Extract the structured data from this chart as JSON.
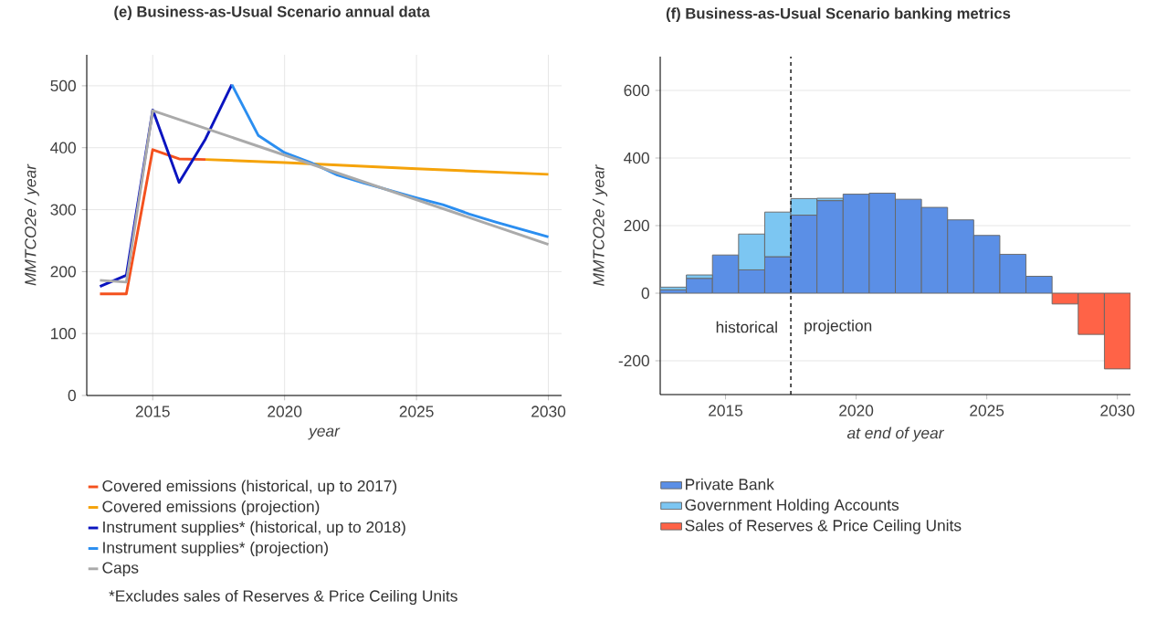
{
  "chart_data": [
    {
      "type": "line",
      "title": "(e) Business-as-Usual Scenario annual data",
      "xlabel": "year",
      "ylabel": "MMTCO2e / year",
      "xlim": [
        2012.5,
        2030.5
      ],
      "ylim": [
        0,
        550
      ],
      "xticks": [
        2015,
        2020,
        2025,
        2030
      ],
      "yticks": [
        0,
        100,
        200,
        300,
        400,
        500
      ],
      "grid": true,
      "legend": "bottom",
      "series": [
        {
          "name": "Covered emissions (historical, up to 2017)",
          "color": "#f4511e",
          "x": [
            2013,
            2014,
            2015,
            2016,
            2017
          ],
          "values": [
            164,
            164,
            397,
            382,
            381
          ]
        },
        {
          "name": "Covered emissions (projection)",
          "color": "#f5a30a",
          "x": [
            2017,
            2020,
            2025,
            2030
          ],
          "values": [
            381,
            376,
            366,
            357
          ]
        },
        {
          "name": "Instrument supplies* (historical, up to 2018)",
          "color": "#0a14c0",
          "x": [
            2013,
            2014,
            2015,
            2016,
            2017,
            2018
          ],
          "values": [
            176,
            194,
            461,
            344,
            414,
            502
          ]
        },
        {
          "name": "Instrument supplies* (projection)",
          "color": "#2b8ef0",
          "x": [
            2018,
            2019,
            2020,
            2021,
            2022,
            2023,
            2024,
            2025,
            2026,
            2027,
            2028,
            2029,
            2030
          ],
          "values": [
            502,
            420,
            392,
            376,
            356,
            343,
            331,
            319,
            308,
            293,
            280,
            268,
            256
          ]
        },
        {
          "name": "Caps",
          "color": "#aaaaaa",
          "x": [
            2013,
            2014,
            2015,
            2030
          ],
          "values": [
            186,
            183,
            460,
            244
          ]
        }
      ],
      "annotations": [
        "*Excludes sales of Reserves & Price Ceiling Units"
      ]
    },
    {
      "type": "bar",
      "stacked": true,
      "title": "(f) Business-as-Usual Scenario banking metrics",
      "xlabel": "at end of year",
      "ylabel": "MMTCO2e / year",
      "xlim": [
        2012.5,
        2030.5
      ],
      "ylim": [
        -300,
        700
      ],
      "xticks": [
        2015,
        2020,
        2025,
        2030
      ],
      "yticks": [
        -200,
        0,
        200,
        400,
        600
      ],
      "grid": "y",
      "legend": "bottom",
      "x": [
        2013,
        2014,
        2015,
        2016,
        2017,
        2018,
        2019,
        2020,
        2021,
        2022,
        2023,
        2024,
        2025,
        2026,
        2027,
        2028,
        2029,
        2030
      ],
      "series": [
        {
          "name": "Private Bank",
          "color": "#5b8fe6",
          "values": [
            10,
            44,
            113,
            69,
            108,
            231,
            274,
            293,
            296,
            278,
            254,
            217,
            171,
            115,
            50,
            null,
            null,
            null
          ]
        },
        {
          "name": "Government Holding Accounts",
          "color": "#7cc6f2",
          "values": [
            8,
            10,
            null,
            106,
            132,
            49,
            7,
            null,
            null,
            null,
            null,
            null,
            null,
            null,
            null,
            null,
            null,
            null
          ]
        },
        {
          "name": "Sales of Reserves & Price Ceiling Units",
          "color": "#ff6347",
          "values": [
            null,
            null,
            null,
            null,
            null,
            null,
            null,
            null,
            null,
            null,
            null,
            null,
            null,
            null,
            null,
            -32,
            -122,
            -224
          ]
        }
      ],
      "ref_lines": [
        {
          "axis": "x",
          "value": 2017.5,
          "color": "#000000",
          "line_style": "dashed"
        }
      ],
      "annotations": [
        "historical",
        "projection"
      ]
    }
  ]
}
